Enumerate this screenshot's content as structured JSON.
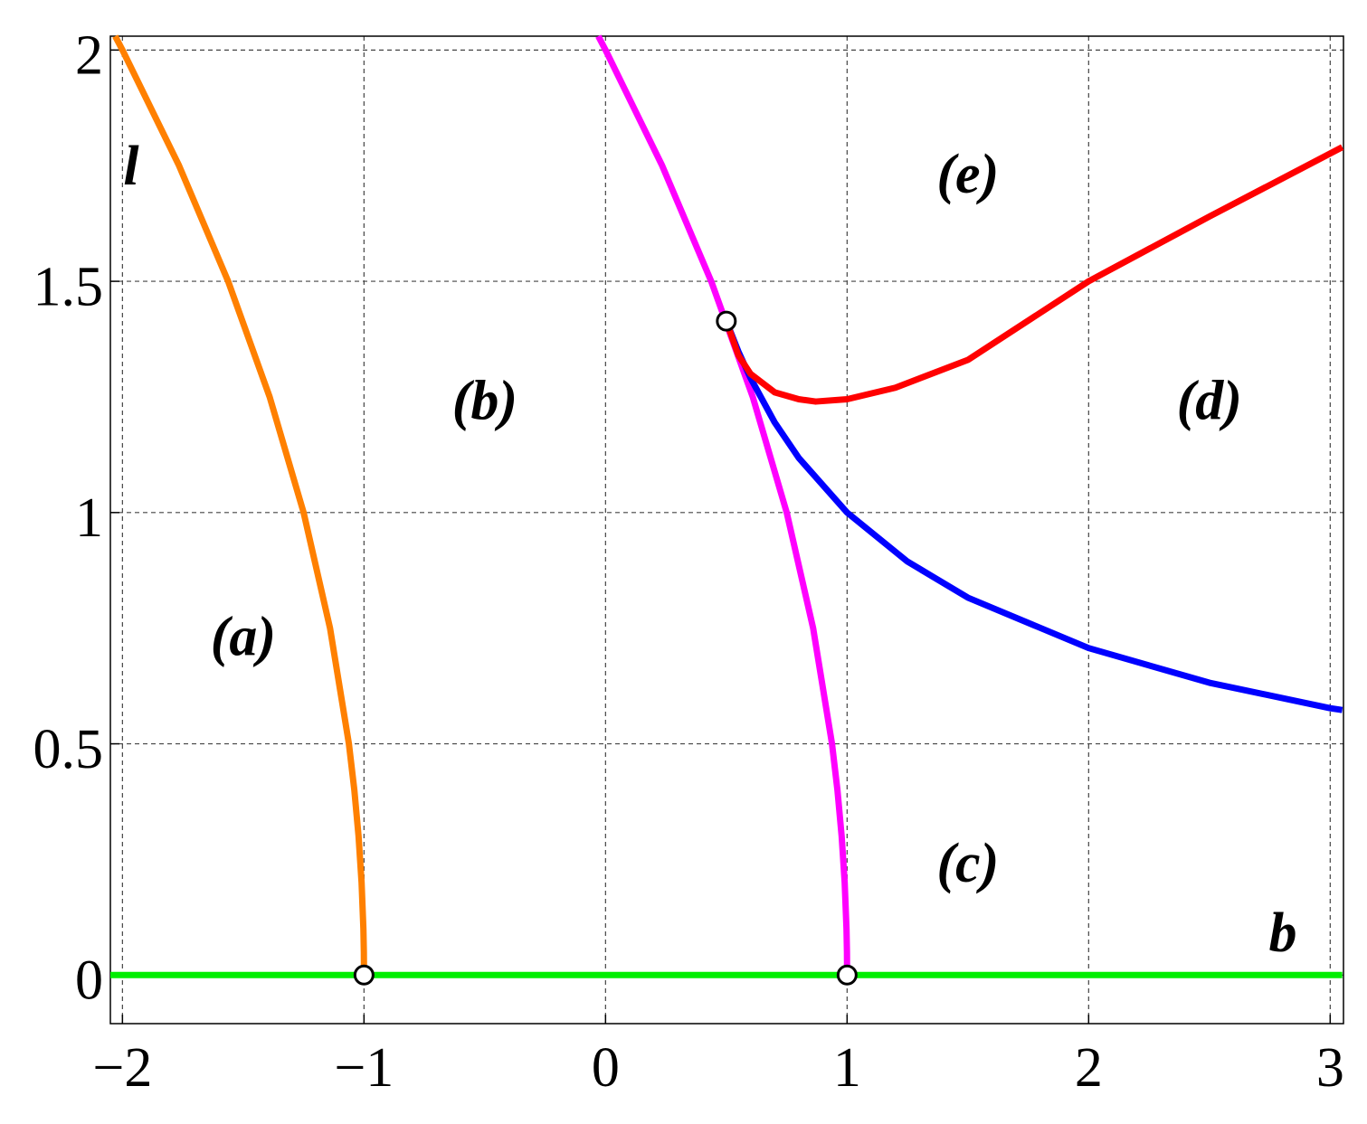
{
  "chart_data": {
    "type": "line",
    "x_label": "b",
    "y_label": "l",
    "xlim": [
      -2.05,
      3.055
    ],
    "ylim": [
      -0.105,
      2.03
    ],
    "xticks": [
      {
        "value": -2,
        "label": "−2"
      },
      {
        "value": -1,
        "label": "−1"
      },
      0,
      1,
      2,
      3
    ],
    "yticks": [
      0,
      0.5,
      1,
      1.5,
      2
    ],
    "grid": true,
    "series": [
      {
        "color": "#ff8000",
        "x": [
          -1,
          -1.0006,
          -1.0025,
          -1.01,
          -1.0225,
          -1.04,
          -1.0625,
          -1.1406,
          -1.25,
          -1.3906,
          -1.5625,
          -1.7656,
          -2,
          -2.03
        ],
        "values": [
          0,
          0.05,
          0.1,
          0.2,
          0.3,
          0.4,
          0.5,
          0.75,
          1,
          1.25,
          1.5,
          1.75,
          2,
          2.03
        ]
      },
      {
        "color": "#ff00ff",
        "x": [
          1,
          0.9994,
          0.9975,
          0.99,
          0.9775,
          0.96,
          0.9375,
          0.8594,
          0.75,
          0.6094,
          0.4375,
          0.2344,
          0,
          -0.03
        ],
        "values": [
          0,
          0.05,
          0.1,
          0.2,
          0.3,
          0.4,
          0.5,
          0.75,
          1,
          1.25,
          1.5,
          1.75,
          2,
          2.03
        ]
      },
      {
        "color": "#0000ff",
        "x": [
          0.5,
          0.55,
          0.6,
          0.7,
          0.8,
          1,
          1.25,
          1.5,
          2,
          2.5,
          3,
          3.05
        ],
        "values": [
          1.414,
          1.348,
          1.291,
          1.195,
          1.118,
          1,
          0.894,
          0.816,
          0.707,
          0.632,
          0.577,
          0.573
        ]
      },
      {
        "color": "#ff0000",
        "x": [
          0.5,
          0.55,
          0.6,
          0.7,
          0.8,
          0.87,
          1,
          1.2,
          1.5,
          2,
          2.5,
          3.05
        ],
        "values": [
          1.414,
          1.34,
          1.3,
          1.26,
          1.245,
          1.24,
          1.245,
          1.27,
          1.33,
          1.5,
          1.64,
          1.79
        ]
      },
      {
        "color": "#00ee00",
        "x": [
          -2.05,
          3.05
        ],
        "values": [
          0,
          0
        ]
      }
    ],
    "markers": {
      "x": [
        -1,
        1,
        0.5
      ],
      "values": [
        0,
        0,
        1.414
      ]
    },
    "annotations": [
      {
        "text": "(a)",
        "x": -1.5,
        "y": 0.72
      },
      {
        "text": "(b)",
        "x": -0.5,
        "y": 1.23
      },
      {
        "text": "(c)",
        "x": 1.5,
        "y": 0.23
      },
      {
        "text": "(d)",
        "x": 2.5,
        "y": 1.23
      },
      {
        "text": "(e)",
        "x": 1.5,
        "y": 1.72
      }
    ]
  }
}
